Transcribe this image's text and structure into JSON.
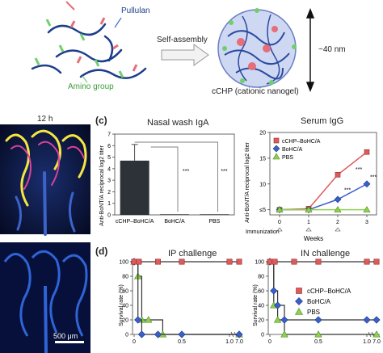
{
  "schematic": {
    "pullulan_label": "Pullulan",
    "amino_label": "Amino group",
    "arrow_label": "Self-assembly",
    "size_label": "~40 nm",
    "nanogel_label": "cCHP (cationic nanogel)"
  },
  "micrograph": {
    "time_label": "12 h",
    "scale_label": "500 μm"
  },
  "panel_c": {
    "letter": "(c)",
    "nasal": {
      "title": "Nasal wash IgA",
      "ylabel": "Anti-BoNT/A reciprocal log2 titer",
      "sig1": "***",
      "sig2": "***"
    },
    "serum": {
      "title": "Serum IgG",
      "ylabel": "Anti-BoNT/A reciprocal log2 titer",
      "xlabel": "Weeks",
      "immunization_label": "Immunization",
      "y_bottom_tick": "≤5",
      "sig1": "***",
      "sig2": "***",
      "sig3": "***"
    }
  },
  "panel_d": {
    "letter": "(d)",
    "ip_title": "IP challenge",
    "in_title": "IN challenge",
    "ylabel": "Survival rate (%)"
  },
  "legend": [
    {
      "name": "cCHP–BoHC/A",
      "color": "#e05a5a",
      "marker": "square"
    },
    {
      "name": "BoHC/A",
      "color": "#3a5fc8",
      "marker": "diamond"
    },
    {
      "name": "PBS",
      "color": "#8fd14f",
      "marker": "triangle"
    }
  ],
  "chart_data": [
    {
      "type": "bar",
      "title": "Nasal wash IgA",
      "ylabel": "Anti-BoNT/A reciprocal log2 titer",
      "categories": [
        "cCHP–BoHC/A",
        "BoHC/A",
        "PBS"
      ],
      "values": [
        4.7,
        0.05,
        0.05
      ],
      "errors": [
        1.4,
        0,
        0
      ],
      "yticks": [
        "0",
        "1",
        "2",
        "3",
        "4",
        "5",
        "6",
        "7"
      ],
      "ylim": [
        0,
        7
      ]
    },
    {
      "type": "line",
      "title": "Serum IgG",
      "ylabel": "Anti-BoNT/A reciprocal log2 titer",
      "xlabel": "Weeks",
      "x": [
        0,
        1,
        2,
        3
      ],
      "xticks": [
        "0",
        "1",
        "2",
        "3"
      ],
      "yticks": [
        "≤5",
        "10",
        "15",
        "20"
      ],
      "ylim": [
        4,
        20
      ],
      "series": [
        {
          "name": "cCHP–BoHC/A",
          "values": [
            5,
            5.2,
            11.8,
            16.2
          ],
          "color": "#e05a5a"
        },
        {
          "name": "BoHC/A",
          "values": [
            5,
            5.0,
            7.0,
            10.0
          ],
          "color": "#3a5fc8"
        },
        {
          "name": "PBS",
          "values": [
            5,
            5,
            5,
            5
          ],
          "color": "#8fd14f"
        }
      ]
    },
    {
      "type": "line",
      "title": "IP challenge",
      "ylabel": "Survival rate (%)",
      "x_ticks": [
        "0",
        "0.5",
        "1.0",
        "7.0"
      ],
      "yticks": [
        "0",
        "20",
        "40",
        "60",
        "80",
        "100"
      ],
      "ylim": [
        0,
        100
      ],
      "series": [
        {
          "name": "cCHP–BoHC/A",
          "x": [
            0,
            0.05,
            0.25,
            0.5,
            1.0,
            7.0
          ],
          "values": [
            100,
            100,
            100,
            100,
            100,
            100
          ]
        },
        {
          "name": "BoHC/A",
          "x": [
            0,
            0.04,
            0.08,
            0.25,
            0.5,
            7.0
          ],
          "values": [
            100,
            20,
            0,
            0,
            0,
            0
          ]
        },
        {
          "name": "PBS",
          "x": [
            0,
            0.04,
            0.08,
            0.15,
            0.3,
            7.0
          ],
          "values": [
            100,
            80,
            20,
            20,
            0,
            0
          ]
        }
      ]
    },
    {
      "type": "line",
      "title": "IN challenge",
      "ylabel": "Survival rate (%)",
      "x_ticks": [
        "0",
        "0.5",
        "1.0",
        "7.0"
      ],
      "yticks": [
        "0",
        "20",
        "40",
        "60",
        "80",
        "100"
      ],
      "ylim": [
        0,
        100
      ],
      "series": [
        {
          "name": "cCHP–BoHC/A",
          "x": [
            0,
            0.05,
            0.25,
            0.5,
            1.0,
            7.0
          ],
          "values": [
            100,
            100,
            100,
            100,
            100,
            100
          ]
        },
        {
          "name": "BoHC/A",
          "x": [
            0,
            0.04,
            0.08,
            0.15,
            0.5,
            1.0,
            7.0
          ],
          "values": [
            100,
            60,
            40,
            20,
            20,
            20,
            20
          ]
        },
        {
          "name": "PBS",
          "x": [
            0,
            0.04,
            0.08,
            0.15,
            0.5,
            7.0
          ],
          "values": [
            100,
            40,
            20,
            0,
            0,
            0
          ]
        }
      ]
    }
  ]
}
